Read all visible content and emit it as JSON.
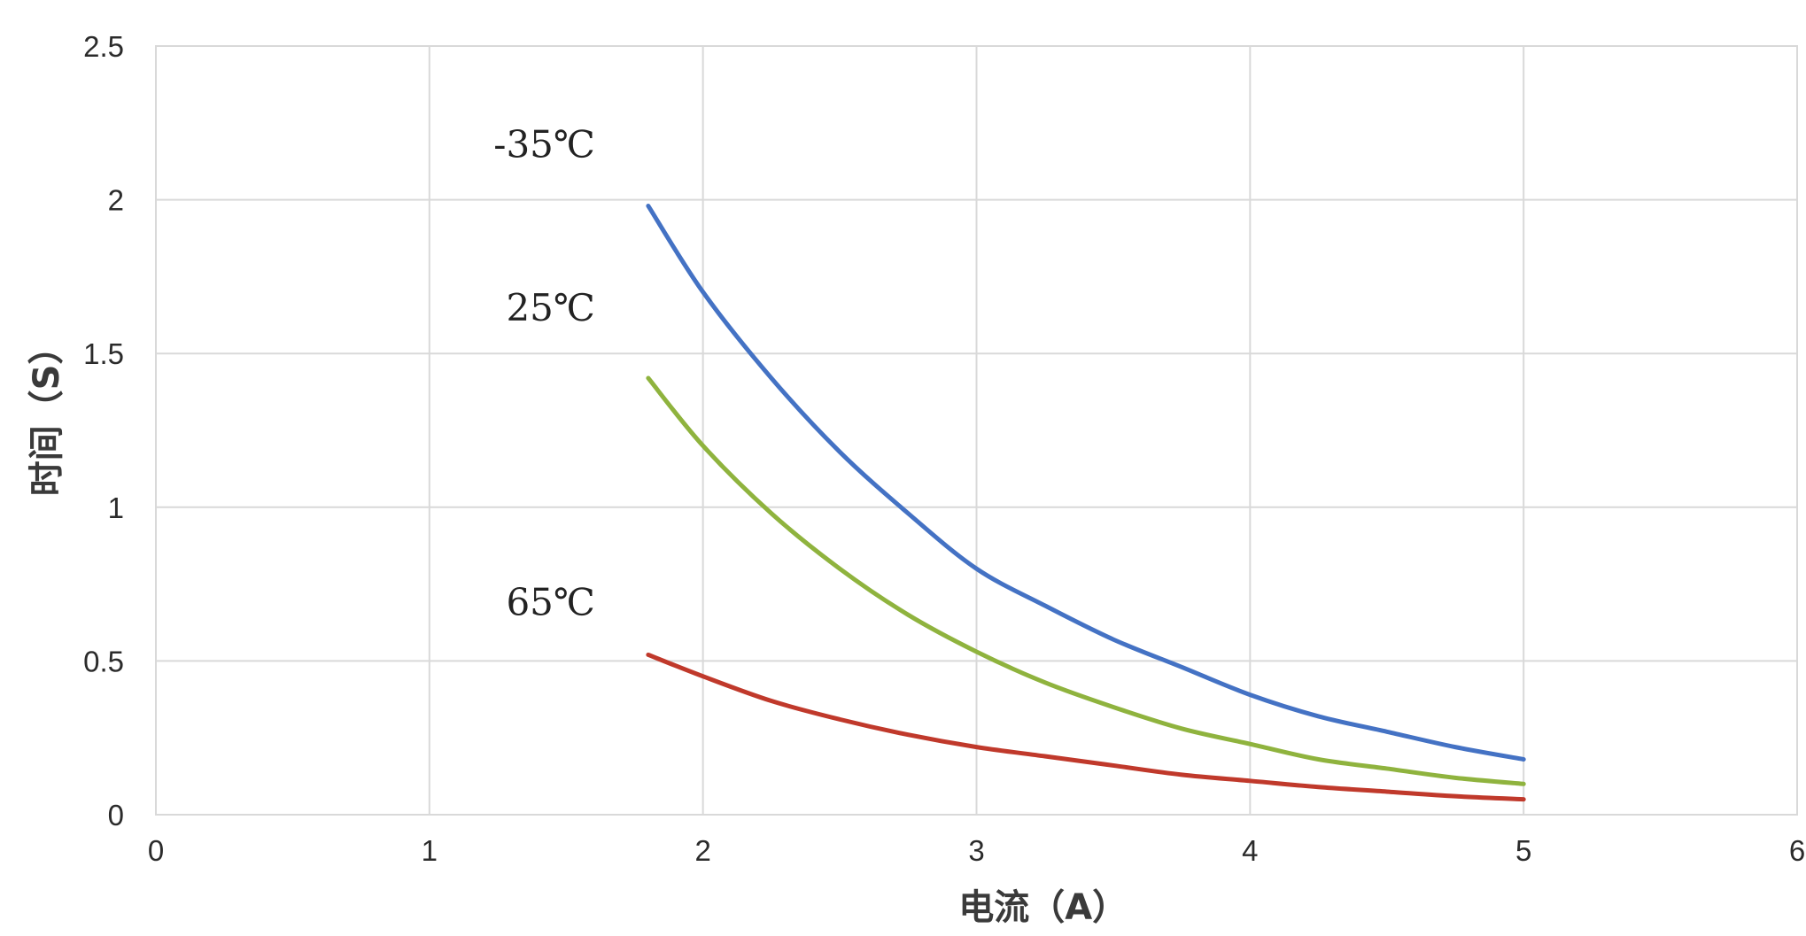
{
  "chart_data": {
    "type": "line",
    "xlabel": "电流（A）",
    "ylabel": "时间（S）",
    "xlim": [
      0,
      6
    ],
    "ylim": [
      0,
      2.5
    ],
    "x_ticks": [
      "0",
      "1",
      "2",
      "3",
      "4",
      "5",
      "6"
    ],
    "y_ticks": [
      "0",
      "0.5",
      "1",
      "1.5",
      "2",
      "2.5"
    ],
    "grid": true,
    "legend": "none",
    "series": [
      {
        "name": "-35℃",
        "color": "#4472c4",
        "x": [
          1.8,
          2.0,
          2.25,
          2.5,
          2.75,
          3.0,
          3.25,
          3.5,
          3.75,
          4.0,
          4.25,
          4.5,
          4.75,
          5.0
        ],
        "y": [
          1.98,
          1.7,
          1.42,
          1.18,
          0.98,
          0.8,
          0.68,
          0.57,
          0.48,
          0.39,
          0.32,
          0.27,
          0.22,
          0.18
        ]
      },
      {
        "name": "25℃",
        "color": "#8fb33e",
        "x": [
          1.8,
          2.0,
          2.25,
          2.5,
          2.75,
          3.0,
          3.25,
          3.5,
          3.75,
          4.0,
          4.25,
          4.5,
          4.75,
          5.0
        ],
        "y": [
          1.42,
          1.2,
          0.98,
          0.8,
          0.65,
          0.53,
          0.43,
          0.35,
          0.28,
          0.23,
          0.18,
          0.15,
          0.12,
          0.1
        ]
      },
      {
        "name": "65℃",
        "color": "#c0392b",
        "x": [
          1.8,
          2.0,
          2.25,
          2.5,
          2.75,
          3.0,
          3.25,
          3.5,
          3.75,
          4.0,
          4.25,
          4.5,
          4.75,
          5.0
        ],
        "y": [
          0.52,
          0.45,
          0.37,
          0.31,
          0.26,
          0.22,
          0.19,
          0.16,
          0.13,
          0.11,
          0.09,
          0.075,
          0.06,
          0.05
        ]
      }
    ],
    "annotations": [
      {
        "text": "-35℃",
        "series": 0
      },
      {
        "text": "25℃",
        "series": 1
      },
      {
        "text": "65℃",
        "series": 2
      }
    ]
  }
}
